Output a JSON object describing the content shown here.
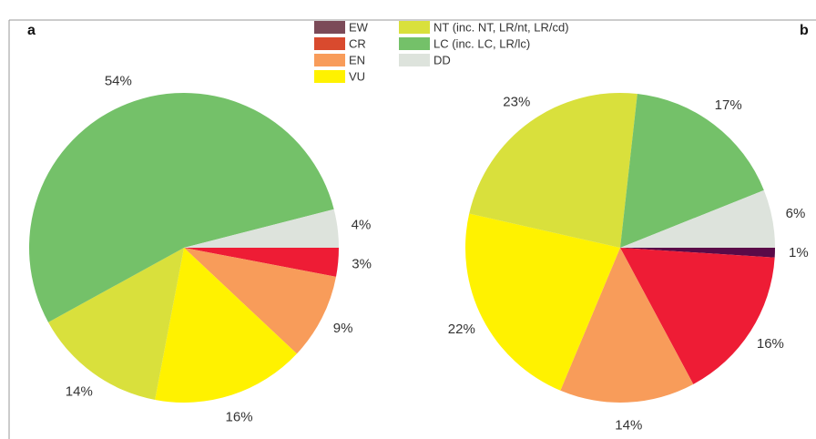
{
  "panel_labels": [
    "a",
    "b"
  ],
  "legend": {
    "items": [
      {
        "name": "EW",
        "color": "#7b4a58"
      },
      {
        "name": "CR",
        "color": "#d94a2e"
      },
      {
        "name": "EN",
        "color": "#f89c5a"
      },
      {
        "name": "VU",
        "color": "#fff200"
      },
      {
        "name": "NT (inc. NT, LR/nt, LR/cd)",
        "color": "#d9e03c"
      },
      {
        "name": "LC (inc. LC, LR/lc)",
        "color": "#74c169"
      },
      {
        "name": "DD",
        "color": "#dde3dc"
      }
    ]
  },
  "chart_data": [
    {
      "type": "pie",
      "categories": [
        "CR",
        "EN",
        "VU",
        "NT",
        "LC",
        "DD"
      ],
      "values": [
        3,
        9,
        16,
        14,
        54,
        4
      ],
      "value_labels": [
        "3%",
        "9%",
        "16%",
        "14%",
        "54%",
        "4%"
      ],
      "colors": [
        "#ee1c35",
        "#f89c5a",
        "#fff200",
        "#d9e03c",
        "#74c169",
        "#dde3dc"
      ]
    },
    {
      "type": "pie",
      "categories": [
        "EW",
        "CR",
        "EN",
        "VU",
        "NT",
        "LC",
        "DD"
      ],
      "values": [
        1,
        16,
        14,
        22,
        23,
        17,
        6
      ],
      "value_labels": [
        "1%",
        "16%",
        "14%",
        "22%",
        "23%",
        "17%",
        "6%"
      ],
      "colors": [
        "#5a0a48",
        "#ee1c35",
        "#f89c5a",
        "#fff200",
        "#d9e03c",
        "#74c169",
        "#dde3dc"
      ]
    }
  ]
}
